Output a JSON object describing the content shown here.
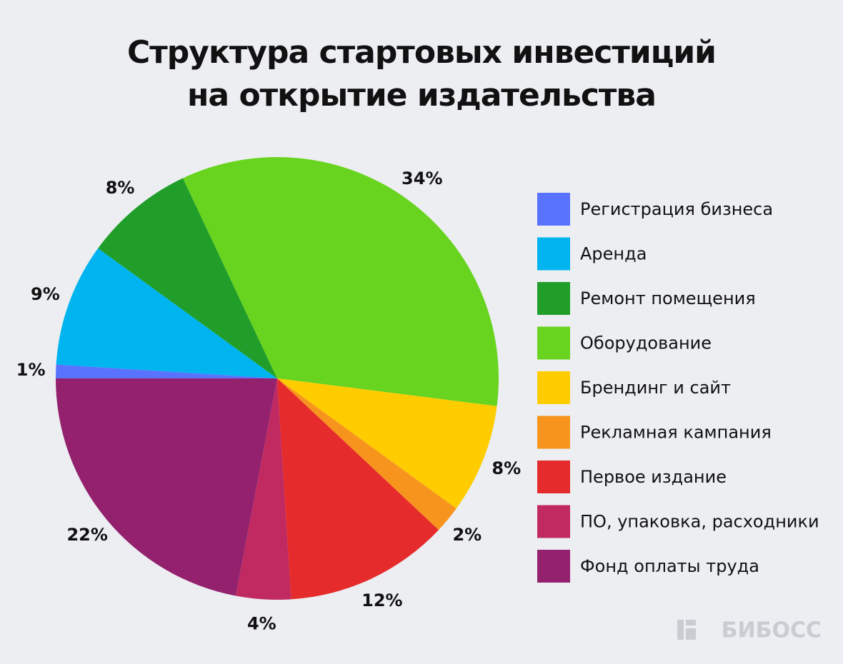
{
  "chart_data": {
    "type": "pie",
    "title": "Структура стартовых инвестиций на открытие издательства",
    "categories": [
      "Регистрация бизнеса",
      "Аренда",
      "Ремонт помещения",
      "Оборудование",
      "Брендинг и сайт",
      "Рекламная кампания",
      "Первое издание",
      "ПО, упаковка, расходники",
      "Фонд оплаты труда"
    ],
    "values": [
      1,
      9,
      8,
      34,
      8,
      2,
      12,
      4,
      22
    ],
    "value_labels": [
      "1%",
      "9%",
      "8%",
      "34%",
      "8%",
      "2%",
      "12%",
      "4%",
      "22%"
    ],
    "colors": [
      "#5a73ff",
      "#00b4ef",
      "#219e29",
      "#68d41f",
      "#ffcc00",
      "#f7941d",
      "#e52b2b",
      "#c02a60",
      "#93216e"
    ],
    "legend": "right"
  },
  "watermark": "БИБОСС"
}
